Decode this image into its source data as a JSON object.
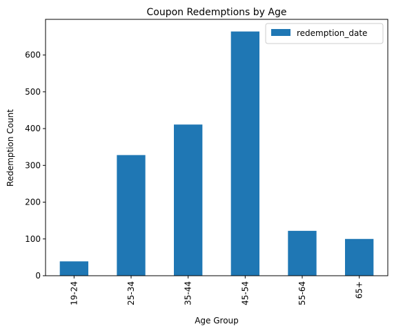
{
  "chart_data": {
    "type": "bar",
    "title": "Coupon Redemptions by Age",
    "xlabel": "Age Group",
    "ylabel": "Redemption Count",
    "categories": [
      "19-24",
      "25-34",
      "35-44",
      "45-54",
      "55-64",
      "65+"
    ],
    "series": [
      {
        "name": "redemption_date",
        "values": [
          39,
          328,
          411,
          664,
          122,
          100
        ]
      }
    ],
    "ylim": [
      0,
      697
    ],
    "yticks": [
      0,
      100,
      200,
      300,
      400,
      500,
      600
    ],
    "grid": false,
    "legend": "top-right",
    "bar_color": "#1f77b4"
  }
}
